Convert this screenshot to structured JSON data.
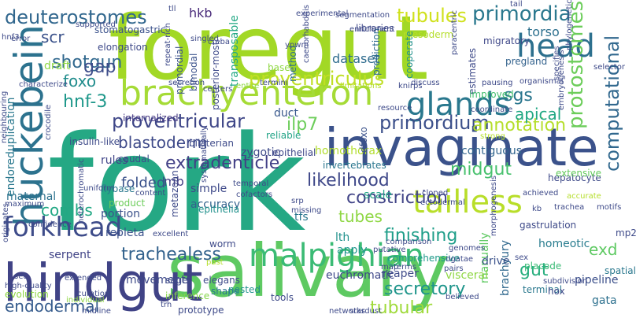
{
  "word_cloud": {
    "words": [
      {
        "text": "foregut",
        "color": "#a2d825"
      },
      {
        "text": "fork",
        "color": "#25a884"
      },
      {
        "text": "salivary",
        "color": "#5ec962"
      },
      {
        "text": "invaginate",
        "color": "#3b528b"
      },
      {
        "text": "hindgut",
        "color": "#404386"
      },
      {
        "text": "huckebein",
        "color": "#2c728e"
      },
      {
        "text": "brachyenteron",
        "color": "#a5db36"
      },
      {
        "text": "malpighian",
        "color": "#3bbb75"
      },
      {
        "text": "glands",
        "color": "#2a788e"
      },
      {
        "text": "tailless",
        "color": "#b8de29"
      },
      {
        "text": "head",
        "color": "#2d708e"
      },
      {
        "text": "forkhead",
        "color": "#3e4c8a"
      },
      {
        "text": "proventriculus",
        "color": "#c0df25"
      },
      {
        "text": "tubules",
        "color": "#d0e11c"
      },
      {
        "text": "primordia",
        "color": "#2a788e"
      },
      {
        "text": "deuterostomes",
        "color": "#31678e"
      },
      {
        "text": "protostomes",
        "color": "#6ccd5a"
      },
      {
        "text": "computational",
        "color": "#31688e"
      },
      {
        "text": "proventricular",
        "color": "#3f4788"
      },
      {
        "text": "extradenticle",
        "color": "#424086"
      },
      {
        "text": "trachealess",
        "color": "#33628d"
      },
      {
        "text": "primordium",
        "color": "#3c508b"
      },
      {
        "text": "constriction",
        "color": "#414487"
      },
      {
        "text": "finishing",
        "color": "#1f9e89"
      },
      {
        "text": "likelihood",
        "color": "#3f4889"
      },
      {
        "text": "blastoderm",
        "color": "#3e4a89"
      },
      {
        "text": "secretory",
        "color": "#1f958b"
      },
      {
        "text": "tubular",
        "color": "#9fda3a"
      },
      {
        "text": "annotation",
        "color": "#b5de2b"
      },
      {
        "text": "endodermal",
        "color": "#365c8d"
      },
      {
        "text": "midgut",
        "color": "#48c16e"
      },
      {
        "text": "shotgun",
        "color": "#31688e"
      },
      {
        "text": "hnf-3",
        "color": "#1f988b"
      },
      {
        "text": "gut",
        "color": "#29af7f"
      },
      {
        "text": "sgs",
        "color": "#2a768e"
      },
      {
        "text": "apical",
        "color": "#22a884"
      },
      {
        "text": "ilp7",
        "color": "#6ccd5a"
      },
      {
        "text": "gap",
        "color": "#3d4d8a"
      },
      {
        "text": "foxo",
        "color": "#228d8d"
      },
      {
        "text": "scr",
        "color": "#3b528b"
      },
      {
        "text": "hkb",
        "color": "#482979"
      },
      {
        "text": "combs",
        "color": "#22a884"
      },
      {
        "text": "exd",
        "color": "#5ec962"
      },
      {
        "text": "tubes",
        "color": "#8fd744"
      },
      {
        "text": "folded",
        "color": "#3b528b"
      },
      {
        "text": "brachyury",
        "color": "#30698e"
      },
      {
        "text": "dataset",
        "color": "#2f6c8e"
      },
      {
        "text": "manually",
        "color": "#5ec962"
      },
      {
        "text": "zygotic",
        "color": "#3e4a89"
      },
      {
        "text": "internalized",
        "color": "#443983"
      },
      {
        "text": "homothorax",
        "color": "#b2dd2d"
      },
      {
        "text": "invertebrates",
        "color": "#2a768e"
      },
      {
        "text": "contiguous",
        "color": "#32658e"
      },
      {
        "text": "reliable",
        "color": "#20a386"
      },
      {
        "text": "transposable",
        "color": "#22a884"
      },
      {
        "text": "accuracy",
        "color": "#33628d"
      },
      {
        "text": "simple",
        "color": "#3e4989"
      },
      {
        "text": "rules",
        "color": "#404588"
      },
      {
        "text": "maternal",
        "color": "#2c728e"
      },
      {
        "text": "portion",
        "color": "#3b528b"
      },
      {
        "text": "serpent",
        "color": "#414487"
      },
      {
        "text": "repleta",
        "color": "#3b528b"
      },
      {
        "text": "visceral",
        "color": "#8fd744"
      },
      {
        "text": "euchromatic",
        "color": "#3f4889"
      },
      {
        "text": "movements",
        "color": "#3e4a89"
      },
      {
        "text": "mb",
        "color": "#433e85"
      },
      {
        "text": "scale",
        "color": "#20a386"
      },
      {
        "text": "comprehensive",
        "color": "#1f9a8a"
      },
      {
        "text": "homeotic",
        "color": "#287c8e"
      },
      {
        "text": "apply",
        "color": "#1f968b"
      },
      {
        "text": "tfs",
        "color": "#2a768e"
      },
      {
        "text": "lth",
        "color": "#21918c"
      },
      {
        "text": "reaper",
        "color": "#3e4a89"
      },
      {
        "text": "torso",
        "color": "#2d708e"
      },
      {
        "text": "duct",
        "color": "#38588c"
      },
      {
        "text": "drive",
        "color": "#3b528b"
      },
      {
        "text": "pipeline",
        "color": "#3c508b"
      },
      {
        "text": "gata",
        "color": "#2d708e"
      },
      {
        "text": "method",
        "color": "#2f6c8e"
      },
      {
        "text": "epithelial",
        "color": "#3f4889"
      },
      {
        "text": "epithelia",
        "color": "#21918c"
      },
      {
        "text": "metazoan",
        "color": "#3e4a89"
      },
      {
        "text": "dfoxo",
        "color": "#3b528b"
      },
      {
        "text": "caudal",
        "color": "#3e4c8a"
      },
      {
        "text": "flybase",
        "color": "#2a788e"
      },
      {
        "text": "product",
        "color": "#6ccd5a"
      },
      {
        "text": "prediction",
        "color": "#2f6c8e"
      },
      {
        "text": "posterior-most",
        "color": "#3e4a89"
      },
      {
        "text": "primordial",
        "color": "#3b528b"
      },
      {
        "text": "bimodal",
        "color": "#3b528b"
      },
      {
        "text": "elongation",
        "color": "#3e4989"
      },
      {
        "text": "draft",
        "color": "#8fd744"
      },
      {
        "text": "insulin-like",
        "color": "#3e4a89"
      },
      {
        "text": "bilaterian",
        "color": "#3e4a89"
      },
      {
        "text": "endoreduplication",
        "color": "#2a788e"
      },
      {
        "text": "stomatogastric",
        "color": "#3b528b"
      },
      {
        "text": "libraries",
        "color": "#3f4889"
      },
      {
        "text": "mesoderm",
        "color": "#b5de2b"
      },
      {
        "text": "migratory",
        "color": "#3f4889"
      },
      {
        "text": "pregland",
        "color": "#33628d"
      },
      {
        "text": "base",
        "color": "#8fd744"
      },
      {
        "text": "terminal",
        "color": "#2a788e"
      },
      {
        "text": "estimates",
        "color": "#3e4a89"
      },
      {
        "text": "cooperate",
        "color": "#21918c"
      },
      {
        "text": "improved",
        "color": "#44bf70"
      },
      {
        "text": "hepatocyte",
        "color": "#3e4a89"
      },
      {
        "text": "extensive",
        "color": "#65cb5e"
      },
      {
        "text": "gastrulation",
        "color": "#3e4a89"
      },
      {
        "text": "mp2",
        "color": "#3e4a89"
      },
      {
        "text": "spatial",
        "color": "#2a788e"
      },
      {
        "text": "hox",
        "color": "#3e4a89"
      },
      {
        "text": "placode",
        "color": "#3bbb75"
      },
      {
        "text": "nested",
        "color": "#21918c"
      },
      {
        "text": "tools",
        "color": "#3e4a89"
      },
      {
        "text": "shape",
        "color": "#2a788e"
      },
      {
        "text": "inference",
        "color": "#86d549"
      },
      {
        "text": "sage",
        "color": "#3e4a89"
      },
      {
        "text": "elegans",
        "color": "#3e4a89"
      },
      {
        "text": "worm",
        "color": "#3e4a89"
      },
      {
        "text": "evolution",
        "color": "#8fd744"
      },
      {
        "text": "prototype",
        "color": "#3e4a89"
      },
      {
        "text": "centers",
        "color": "#3e4a89"
      },
      {
        "text": "entire",
        "color": "#8fd744"
      },
      {
        "text": "termini",
        "color": "#3e4a89"
      },
      {
        "text": "knirps",
        "color": "#3e4a89"
      },
      {
        "text": "discuss",
        "color": "#3e4a89"
      },
      {
        "text": "pausing",
        "color": "#3e4a89"
      },
      {
        "text": "organismal",
        "color": "#3e4a89"
      },
      {
        "text": "secretion",
        "color": "#3e4a89"
      },
      {
        "text": "limitations",
        "color": "#b5de2b"
      },
      {
        "text": "coordinate",
        "color": "#3e4a89"
      },
      {
        "text": "resource",
        "color": "#3e4a89"
      },
      {
        "text": "characterize",
        "color": "#3e4a89"
      },
      {
        "text": "crocodile",
        "color": "#3e4a89"
      },
      {
        "text": "neighbouring",
        "color": "#3e4a89"
      },
      {
        "text": "error",
        "color": "#3e4a89"
      },
      {
        "text": "hnf3",
        "color": "#3e4a89"
      },
      {
        "text": "supported",
        "color": "#3e4a89"
      },
      {
        "text": "segmentation",
        "color": "#3e4a89"
      },
      {
        "text": "experimental",
        "color": "#3e4a89"
      },
      {
        "text": "enrichment",
        "color": "#3e4a89"
      },
      {
        "text": "tail",
        "color": "#3e4a89"
      },
      {
        "text": "specifies",
        "color": "#3e4a89"
      },
      {
        "text": "phylogenetic",
        "color": "#3e4a89"
      },
      {
        "text": "selector",
        "color": "#3e4a89"
      },
      {
        "text": "embryogenesis",
        "color": "#3e4a89"
      },
      {
        "text": "strong",
        "color": "#b5de2b"
      },
      {
        "text": "heterochromatic",
        "color": "#3e4a89"
      },
      {
        "text": "uniform",
        "color": "#3e4a89"
      },
      {
        "text": "maximum",
        "color": "#3e4a89"
      },
      {
        "text": "confidence",
        "color": "#3e4a89"
      },
      {
        "text": "originates",
        "color": "#3e4a89"
      },
      {
        "text": "extended",
        "color": "#3e4a89"
      },
      {
        "text": "set",
        "color": "#3e4a89"
      },
      {
        "text": "curation",
        "color": "#3e4a89"
      },
      {
        "text": "individual",
        "color": "#8fd744"
      },
      {
        "text": "high-quality",
        "color": "#3e4a89"
      },
      {
        "text": "midline",
        "color": "#3e4a89"
      },
      {
        "text": "excellent",
        "color": "#3e4a89"
      },
      {
        "text": "trh",
        "color": "#3e4a89"
      },
      {
        "text": "past",
        "color": "#b5de2b"
      },
      {
        "text": "networks",
        "color": "#3e4a89"
      },
      {
        "text": "stardust",
        "color": "#3e4a89"
      },
      {
        "text": "content",
        "color": "#3e4a89"
      },
      {
        "text": "temporal",
        "color": "#3e4a89"
      },
      {
        "text": "systematically",
        "color": "#3e4a89"
      },
      {
        "text": "cofactors",
        "color": "#3e4a89"
      },
      {
        "text": "srp",
        "color": "#3e4a89"
      },
      {
        "text": "missing",
        "color": "#3e4a89"
      },
      {
        "text": "cloned",
        "color": "#3e4a89"
      },
      {
        "text": "ectodermal",
        "color": "#3e4a89"
      },
      {
        "text": "achieved",
        "color": "#3e4a89"
      },
      {
        "text": "trachea",
        "color": "#3e4a89"
      },
      {
        "text": "accurate",
        "color": "#b5de2b"
      },
      {
        "text": "motifs",
        "color": "#3e4a89"
      },
      {
        "text": "kb",
        "color": "#3e4a89"
      },
      {
        "text": "putative",
        "color": "#3e4a89"
      },
      {
        "text": "genomes",
        "color": "#3e4a89"
      },
      {
        "text": "dgatae",
        "color": "#3e4a89"
      },
      {
        "text": "pairs",
        "color": "#3e4a89"
      },
      {
        "text": "map",
        "color": "#3e4a89"
      },
      {
        "text": "terms",
        "color": "#3e4a89"
      },
      {
        "text": "comparison",
        "color": "#3e4a89"
      },
      {
        "text": "morphogenesis",
        "color": "#3e4a89"
      },
      {
        "text": "sex",
        "color": "#3e4a89"
      },
      {
        "text": "subdivision",
        "color": "#3e4a89"
      },
      {
        "text": "believed",
        "color": "#3e4a89"
      },
      {
        "text": "singled",
        "color": "#3e4a89"
      },
      {
        "text": "creba",
        "color": "#3e4a89"
      },
      {
        "text": "ypwm",
        "color": "#3e4a89"
      },
      {
        "text": "caenorhabditis",
        "color": "#3e4a89"
      },
      {
        "text": "paracentric",
        "color": "#3e4a89"
      },
      {
        "text": "repeat-rich",
        "color": "#3e4a89"
      },
      {
        "text": "tll",
        "color": "#3e4a89"
      }
    ]
  }
}
